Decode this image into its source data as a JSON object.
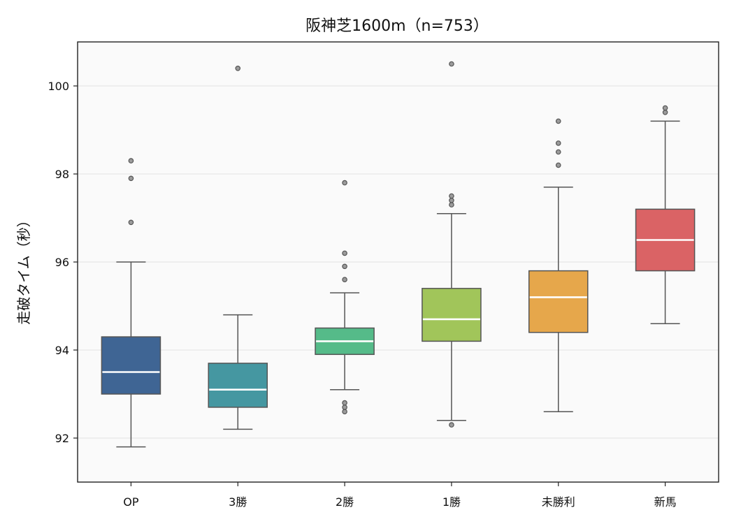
{
  "chart_data": {
    "type": "box",
    "title": "阪神芝1600m（n=753）",
    "xlabel": "",
    "ylabel": "走破タイム（秒）",
    "ylim": [
      91.0,
      101.0
    ],
    "yticks": [
      92,
      94,
      96,
      98,
      100
    ],
    "grid": "horizontal",
    "legend": "none",
    "categories": [
      "OP",
      "3勝",
      "2勝",
      "1勝",
      "未勝利",
      "新馬"
    ],
    "boxes": [
      {
        "category": "OP",
        "whisker_low": 91.8,
        "q1": 93.0,
        "median": 93.5,
        "q3": 94.3,
        "whisker_high": 96.0,
        "outliers": [
          96.9,
          97.9,
          98.3
        ],
        "color": "#3F6594"
      },
      {
        "category": "3勝",
        "whisker_low": 92.2,
        "q1": 92.7,
        "median": 93.1,
        "q3": 93.7,
        "whisker_high": 94.8,
        "outliers": [
          100.4
        ],
        "color": "#4597A1"
      },
      {
        "category": "2勝",
        "whisker_low": 93.1,
        "q1": 93.9,
        "median": 94.2,
        "q3": 94.5,
        "whisker_high": 95.3,
        "outliers": [
          92.6,
          92.7,
          92.8,
          95.6,
          95.9,
          96.2,
          97.8
        ],
        "color": "#55BB89"
      },
      {
        "category": "1勝",
        "whisker_low": 92.4,
        "q1": 94.2,
        "median": 94.7,
        "q3": 95.4,
        "whisker_high": 97.1,
        "outliers": [
          92.3,
          97.3,
          97.4,
          97.5,
          100.5
        ],
        "color": "#A1C55A"
      },
      {
        "category": "未勝利",
        "whisker_low": 92.6,
        "q1": 94.4,
        "median": 95.2,
        "q3": 95.8,
        "whisker_high": 97.7,
        "outliers": [
          98.2,
          98.5,
          98.7,
          99.2
        ],
        "color": "#E6A74B"
      },
      {
        "category": "新馬",
        "whisker_low": 94.6,
        "q1": 95.8,
        "median": 96.5,
        "q3": 97.2,
        "whisker_high": 99.2,
        "outliers": [
          99.4,
          99.5
        ],
        "color": "#DA6365"
      }
    ]
  }
}
